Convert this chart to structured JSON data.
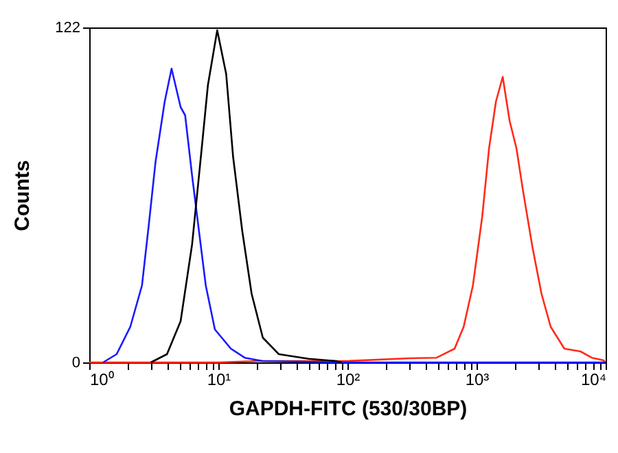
{
  "chart_data": {
    "type": "line",
    "xlabel": "GAPDH-FITC (530/30BP)",
    "ylabel": "Counts",
    "log": "x",
    "grid": false,
    "legend": false,
    "marker": "none",
    "line_style": "solid",
    "xlim": [
      1,
      10000
    ],
    "ylim": [
      0,
      122
    ],
    "yticks": [
      0,
      122
    ],
    "xticks": [
      {
        "value": 1,
        "label": "10⁰"
      },
      {
        "value": 2,
        "label": null
      },
      {
        "value": 3,
        "label": null
      },
      {
        "value": 4,
        "label": null
      },
      {
        "value": 5,
        "label": null
      },
      {
        "value": 6,
        "label": null
      },
      {
        "value": 7,
        "label": null
      },
      {
        "value": 8,
        "label": null
      },
      {
        "value": 9,
        "label": null
      },
      {
        "value": 10,
        "label": "10¹"
      },
      {
        "value": 20,
        "label": null
      },
      {
        "value": 30,
        "label": null
      },
      {
        "value": 40,
        "label": null
      },
      {
        "value": 50,
        "label": null
      },
      {
        "value": 60,
        "label": null
      },
      {
        "value": 70,
        "label": null
      },
      {
        "value": 80,
        "label": null
      },
      {
        "value": 90,
        "label": null
      },
      {
        "value": 100,
        "label": "10²"
      },
      {
        "value": 200,
        "label": null
      },
      {
        "value": 300,
        "label": null
      },
      {
        "value": 400,
        "label": null
      },
      {
        "value": 500,
        "label": null
      },
      {
        "value": 600,
        "label": null
      },
      {
        "value": 700,
        "label": null
      },
      {
        "value": 800,
        "label": null
      },
      {
        "value": 900,
        "label": null
      },
      {
        "value": 1000,
        "label": "10³"
      },
      {
        "value": 2000,
        "label": null
      },
      {
        "value": 3000,
        "label": null
      },
      {
        "value": 4000,
        "label": null
      },
      {
        "value": 5000,
        "label": null
      },
      {
        "value": 6000,
        "label": null
      },
      {
        "value": 7000,
        "label": null
      },
      {
        "value": 8000,
        "label": null
      },
      {
        "value": 9000,
        "label": null
      },
      {
        "value": 10000,
        "label": "10⁴"
      }
    ],
    "series": [
      {
        "color": "#ff2a1a",
        "x": [
          1,
          10,
          20,
          100,
          300,
          490,
          676,
          795,
          937,
          1106,
          1250,
          1413,
          1595,
          1803,
          2037,
          2300,
          2710,
          3185,
          3750,
          4790,
          6380,
          7810,
          9550,
          10000
        ],
        "values": [
          0,
          0,
          0.5,
          0.5,
          1.5,
          1.7,
          5,
          13,
          28,
          53,
          78,
          95,
          104,
          88,
          78,
          62,
          42,
          25,
          13,
          5,
          4,
          1.7,
          0.8,
          0
        ]
      },
      {
        "color": "#1a1aff",
        "x": [
          1.28,
          1.63,
          2.08,
          2.56,
          2.89,
          3.26,
          3.84,
          4.34,
          5.1,
          5.53,
          6.26,
          7.07,
          7.99,
          9.4,
          12.5,
          16,
          22,
          100,
          10000
        ],
        "values": [
          0,
          3,
          13,
          28,
          50,
          73,
          95,
          107,
          93,
          90,
          68,
          48,
          28,
          12,
          5,
          1.7,
          0.5,
          0,
          0
        ]
      },
      {
        "color": "#000000",
        "x": [
          3,
          4,
          5.1,
          6.26,
          7.36,
          8.3,
          9.8,
          11.5,
          13,
          15.3,
          18.1,
          22.1,
          29.4,
          50,
          81,
          90
        ],
        "values": [
          0,
          3,
          15,
          43,
          76,
          101,
          121,
          105,
          75,
          48,
          25,
          9,
          3,
          1.3,
          0.5,
          0
        ]
      }
    ]
  }
}
